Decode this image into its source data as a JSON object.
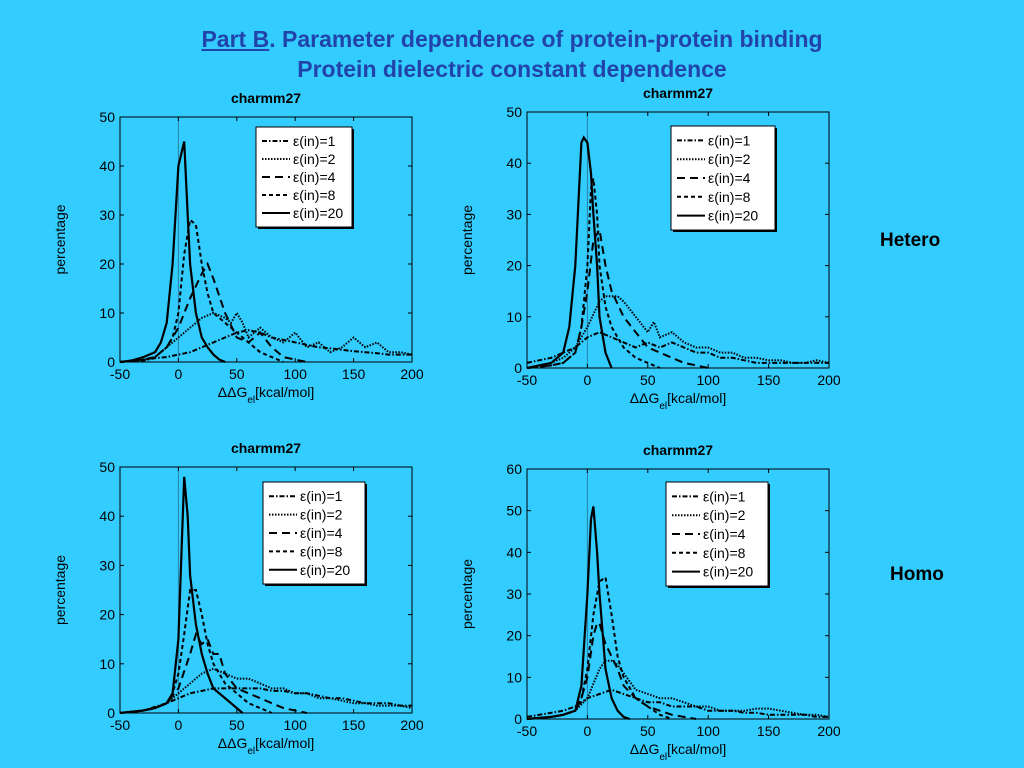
{
  "slide": {
    "title_link": "Part B",
    "title_rest": ". Parameter dependence of protein-protein binding",
    "title_line2": "Protein dielectric constant dependence",
    "label_hetero": "Hetero",
    "label_homo": "Homo"
  },
  "chart_data": [
    {
      "type": "line",
      "title": "charmm27",
      "xlabel": "ΔΔG_el[kcal/mol]",
      "ylabel": "percentage",
      "xlim": [
        -50,
        200
      ],
      "ylim": [
        0,
        50
      ],
      "xticks": [
        -50,
        0,
        50,
        100,
        150,
        200
      ],
      "yticks": [
        0,
        10,
        20,
        30,
        40,
        50
      ],
      "legend_position": "top-right",
      "series": [
        {
          "name": "ε(in)=1",
          "dash": "dashdot",
          "x": [
            -50,
            -30,
            -20,
            -10,
            0,
            10,
            20,
            30,
            40,
            50,
            60,
            70,
            80,
            90,
            100,
            110,
            120,
            130,
            140,
            150,
            160,
            170,
            180,
            190,
            200
          ],
          "y": [
            0,
            0.3,
            0.8,
            1,
            1.5,
            2,
            3,
            4,
            5,
            6,
            6.5,
            6,
            5,
            4.5,
            4,
            3.5,
            3,
            2.8,
            2.5,
            2.2,
            2,
            1.8,
            1.5,
            1.5,
            1.5
          ]
        },
        {
          "name": "ε(in)=2",
          "dash": "dotted",
          "x": [
            -50,
            -30,
            -20,
            -10,
            0,
            10,
            20,
            30,
            40,
            45,
            50,
            55,
            60,
            70,
            80,
            90,
            100,
            110,
            120,
            130,
            140,
            150,
            160,
            170,
            180,
            190,
            200
          ],
          "y": [
            0,
            0.3,
            1,
            3,
            5,
            7,
            9,
            10,
            9,
            8,
            10,
            8,
            5,
            7,
            5,
            4,
            6,
            3,
            4,
            2,
            3,
            5,
            3,
            4,
            2,
            2,
            1.5
          ]
        },
        {
          "name": "ε(in)=4",
          "dash": "dashed",
          "x": [
            -50,
            -30,
            -20,
            -10,
            0,
            10,
            20,
            25,
            30,
            40,
            50,
            60,
            70,
            80,
            90,
            100,
            110
          ],
          "y": [
            0,
            0.5,
            1,
            3,
            7,
            13,
            18,
            20,
            17,
            10,
            5,
            4,
            6,
            3,
            1,
            0.5,
            0
          ]
        },
        {
          "name": "ε(in)=8",
          "dash": "dashed-short",
          "x": [
            -50,
            -30,
            -20,
            -10,
            -5,
            0,
            5,
            10,
            15,
            20,
            25,
            30,
            40,
            50,
            60,
            70,
            80,
            90
          ],
          "y": [
            0,
            0.5,
            1,
            3,
            5,
            10,
            22,
            29,
            28,
            20,
            14,
            10,
            8,
            6,
            4,
            2,
            1,
            0
          ]
        },
        {
          "name": "ε(in)=20",
          "dash": "solid",
          "x": [
            -50,
            -40,
            -30,
            -20,
            -15,
            -10,
            -5,
            0,
            5,
            8,
            10,
            15,
            20,
            25,
            30,
            35,
            40
          ],
          "y": [
            0,
            0.3,
            1,
            2,
            4,
            8,
            20,
            40,
            45,
            30,
            20,
            10,
            5,
            3,
            1.5,
            0.5,
            0
          ]
        }
      ]
    },
    {
      "type": "line",
      "title": "charmm27",
      "xlabel": "ΔΔG_el[kcal/mol]",
      "ylabel": "percentage",
      "xlim": [
        -50,
        200
      ],
      "ylim": [
        0,
        50
      ],
      "xticks": [
        -50,
        0,
        50,
        100,
        150,
        200
      ],
      "yticks": [
        0,
        10,
        20,
        30,
        40,
        50
      ],
      "legend_position": "top-right",
      "series": [
        {
          "name": "ε(in)=1",
          "dash": "dashdot",
          "x": [
            -50,
            -40,
            -30,
            -20,
            -10,
            0,
            10,
            20,
            30,
            40,
            50,
            60,
            70,
            80,
            90,
            100,
            110,
            120,
            130,
            140,
            150,
            160,
            170,
            180,
            190,
            200
          ],
          "y": [
            1,
            1.5,
            2,
            3,
            4,
            6,
            7,
            6,
            5,
            4,
            5,
            4,
            5,
            4,
            3,
            3,
            2,
            2,
            1.5,
            1,
            1,
            1,
            1,
            1,
            1,
            1
          ]
        },
        {
          "name": "ε(in)=2",
          "dash": "dotted",
          "x": [
            -50,
            -40,
            -30,
            -20,
            -10,
            0,
            10,
            15,
            20,
            25,
            30,
            40,
            50,
            55,
            60,
            70,
            80,
            90,
            100,
            110,
            120,
            130,
            140,
            150,
            160,
            170,
            180,
            190,
            200
          ],
          "y": [
            0,
            0.5,
            1,
            2,
            4,
            8,
            13,
            14,
            14,
            14,
            13,
            10,
            7,
            9,
            6,
            7,
            5,
            4,
            4,
            3,
            3,
            2,
            2,
            1.5,
            1.5,
            1,
            1,
            1.5,
            1
          ]
        },
        {
          "name": "ε(in)=4",
          "dash": "dashed",
          "x": [
            -50,
            -30,
            -20,
            -10,
            -5,
            0,
            5,
            10,
            15,
            20,
            30,
            40,
            50,
            60,
            70,
            80,
            90,
            100
          ],
          "y": [
            0,
            0.5,
            1,
            3,
            8,
            15,
            25,
            27,
            20,
            15,
            10,
            7,
            4,
            3,
            2,
            1,
            0.5,
            0
          ]
        },
        {
          "name": "ε(in)=8",
          "dash": "dashed-short",
          "x": [
            -50,
            -30,
            -20,
            -10,
            -5,
            0,
            3,
            5,
            8,
            10,
            15,
            20,
            25,
            30,
            40,
            50,
            60
          ],
          "y": [
            0,
            0.5,
            1,
            3,
            8,
            20,
            35,
            37,
            30,
            20,
            12,
            8,
            6,
            4,
            2,
            1,
            0
          ]
        },
        {
          "name": "ε(in)=20",
          "dash": "solid",
          "x": [
            -50,
            -40,
            -30,
            -20,
            -15,
            -10,
            -5,
            -3,
            0,
            3,
            5,
            8,
            10,
            15,
            20
          ],
          "y": [
            0,
            0.5,
            1,
            3,
            8,
            20,
            44,
            45,
            44,
            38,
            30,
            20,
            10,
            3,
            0
          ]
        }
      ]
    },
    {
      "type": "line",
      "title": "charmm27",
      "xlabel": "ΔΔG_el[kcal/mol]",
      "ylabel": "percentage",
      "xlim": [
        -50,
        200
      ],
      "ylim": [
        0,
        50
      ],
      "xticks": [
        -50,
        0,
        50,
        100,
        150,
        200
      ],
      "yticks": [
        0,
        10,
        20,
        30,
        40,
        50
      ],
      "legend_position": "top-right",
      "series": [
        {
          "name": "ε(in)=1",
          "dash": "dashdot",
          "x": [
            -50,
            -30,
            -10,
            0,
            10,
            20,
            30,
            40,
            50,
            60,
            70,
            80,
            90,
            100,
            110,
            120,
            130,
            140,
            150,
            160,
            170,
            180,
            190,
            200
          ],
          "y": [
            0,
            0.5,
            2,
            3,
            4,
            4.5,
            5,
            5,
            5,
            5,
            5,
            4.5,
            4.5,
            4,
            4,
            3.5,
            3,
            3,
            2.5,
            2,
            2,
            2,
            1.5,
            1.5
          ]
        },
        {
          "name": "ε(in)=2",
          "dash": "dotted",
          "x": [
            -50,
            -30,
            -20,
            -10,
            0,
            10,
            20,
            30,
            40,
            50,
            60,
            70,
            80,
            90,
            100,
            110,
            120,
            130,
            140,
            150,
            160,
            170,
            180,
            190,
            200
          ],
          "y": [
            0,
            0.5,
            1,
            2,
            4,
            6,
            8,
            9,
            8,
            7,
            7,
            6,
            5,
            5,
            4,
            4,
            3,
            3,
            2.5,
            2,
            2,
            1.5,
            1.5,
            1.5,
            1
          ]
        },
        {
          "name": "ε(in)=4",
          "dash": "dashed",
          "x": [
            -50,
            -30,
            -20,
            -10,
            0,
            10,
            15,
            20,
            25,
            30,
            35,
            40,
            50,
            60,
            70,
            80,
            90,
            100,
            110
          ],
          "y": [
            0,
            0.5,
            1,
            2,
            5,
            12,
            16,
            14,
            15,
            12,
            12,
            8,
            5,
            4,
            3,
            2,
            1,
            0.5,
            0
          ]
        },
        {
          "name": "ε(in)=8",
          "dash": "dashed-short",
          "x": [
            -50,
            -30,
            -20,
            -10,
            -5,
            0,
            5,
            10,
            15,
            20,
            25,
            30,
            40,
            50,
            60,
            70,
            80
          ],
          "y": [
            0,
            0.5,
            1,
            2,
            4,
            8,
            16,
            25,
            25,
            20,
            14,
            10,
            6,
            4,
            2,
            1,
            0
          ]
        },
        {
          "name": "ε(in)=20",
          "dash": "solid",
          "x": [
            -50,
            -30,
            -20,
            -10,
            -5,
            0,
            3,
            5,
            8,
            10,
            15,
            20,
            25,
            30,
            40,
            50,
            55
          ],
          "y": [
            0,
            0.5,
            1,
            2,
            4,
            15,
            35,
            48,
            40,
            28,
            18,
            12,
            8,
            5,
            3,
            1,
            0
          ]
        }
      ]
    },
    {
      "type": "line",
      "title": "charmm27",
      "xlabel": "ΔΔG_el[kcal/mol]",
      "ylabel": "percentage",
      "xlim": [
        -50,
        200
      ],
      "ylim": [
        0,
        60
      ],
      "xticks": [
        -50,
        0,
        50,
        100,
        150,
        200
      ],
      "yticks": [
        0,
        10,
        20,
        30,
        40,
        50,
        60
      ],
      "legend_position": "top-right",
      "series": [
        {
          "name": "ε(in)=1",
          "dash": "dashdot",
          "x": [
            -50,
            -40,
            -30,
            -20,
            -10,
            0,
            10,
            20,
            30,
            40,
            50,
            60,
            70,
            80,
            90,
            100,
            110,
            120,
            130,
            140,
            150,
            160,
            170,
            180,
            190,
            200
          ],
          "y": [
            0.5,
            1,
            1.5,
            2,
            3,
            5,
            6,
            7,
            6,
            5,
            4,
            4,
            3,
            3,
            3,
            2,
            2,
            2,
            1.5,
            1.5,
            1,
            1,
            1,
            1,
            0.5,
            0.5
          ]
        },
        {
          "name": "ε(in)=2",
          "dash": "dotted",
          "x": [
            -50,
            -30,
            -20,
            -10,
            0,
            10,
            15,
            20,
            25,
            30,
            40,
            50,
            60,
            70,
            80,
            90,
            100,
            110,
            120,
            130,
            140,
            150,
            160,
            170,
            180,
            190,
            200
          ],
          "y": [
            0,
            0.5,
            1,
            2,
            5,
            12,
            14,
            14,
            13,
            11,
            7,
            6,
            5,
            5,
            4,
            3,
            3,
            2,
            2,
            2,
            2.5,
            2.5,
            2,
            1.5,
            1,
            1,
            0.5
          ]
        },
        {
          "name": "ε(in)=4",
          "dash": "dashed",
          "x": [
            -50,
            -30,
            -20,
            -10,
            -5,
            0,
            5,
            8,
            10,
            15,
            20,
            25,
            30,
            40,
            50,
            60,
            70,
            80,
            90
          ],
          "y": [
            0,
            0.5,
            1,
            2,
            5,
            10,
            20,
            23,
            23,
            18,
            15,
            12,
            8,
            5,
            3,
            2,
            1,
            0.5,
            0
          ]
        },
        {
          "name": "ε(in)=8",
          "dash": "dashed-short",
          "x": [
            -50,
            -30,
            -20,
            -10,
            -5,
            0,
            5,
            10,
            15,
            20,
            25,
            30,
            40,
            50,
            60,
            70
          ],
          "y": [
            0,
            0.5,
            1,
            2,
            5,
            12,
            25,
            33,
            34,
            25,
            15,
            10,
            5,
            3,
            1,
            0
          ]
        },
        {
          "name": "ε(in)=20",
          "dash": "solid",
          "x": [
            -50,
            -30,
            -20,
            -10,
            -5,
            0,
            3,
            5,
            8,
            10,
            15,
            20,
            25,
            30,
            35
          ],
          "y": [
            0,
            0.5,
            1,
            2,
            8,
            30,
            48,
            51,
            40,
            30,
            12,
            5,
            2,
            0.5,
            0
          ]
        }
      ]
    }
  ]
}
